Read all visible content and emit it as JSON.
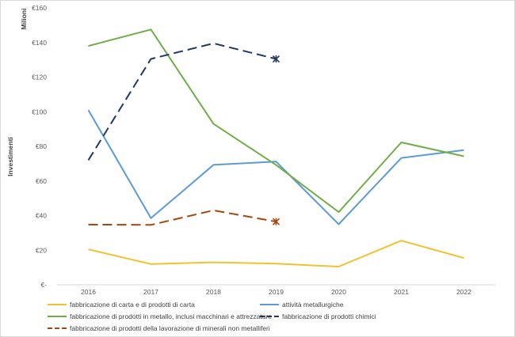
{
  "chart_data": {
    "type": "line",
    "x": [
      "2016",
      "2017",
      "2018",
      "2019",
      "2020",
      "2021",
      "2022"
    ],
    "ylabel": "Investimenti",
    "units_label": "Milioni",
    "ylim": [
      0,
      160
    ],
    "y_ticks": [
      "€-",
      "€20",
      "€40",
      "€60",
      "€80",
      "€100",
      "€120",
      "€140",
      "€160"
    ],
    "grid": false,
    "legend_position": "bottom",
    "series": [
      {
        "name": "fabbricazione di carta e di prodotti di carta",
        "color": "#f2c12e",
        "dashed": false,
        "values": [
          20.5,
          12,
          13,
          12.2,
          10.5,
          25.5,
          15.5
        ]
      },
      {
        "name": "attività metallurgiche",
        "color": "#5b9bd5",
        "dashed": false,
        "values": [
          101,
          38.5,
          69.3,
          71.2,
          35,
          73.3,
          77.8
        ]
      },
      {
        "name": "fabbricazione di prodotti in metallo, inclusi macchinari e attrezzature",
        "color": "#70ad47",
        "dashed": false,
        "values": [
          138,
          147.5,
          93,
          69.2,
          42,
          82.3,
          74.3
        ]
      },
      {
        "name": "fabbricazione di prodotti chimici",
        "color": "#1f3864",
        "dashed": true,
        "values": [
          72,
          130.5,
          139.5,
          130.5,
          null,
          null,
          null
        ],
        "end_marker": "x"
      },
      {
        "name": "fabbricazione di prodotti della lavorazione di minerali non metalliferi",
        "color": "#a5460e",
        "dashed": true,
        "values": [
          34.8,
          34.6,
          43,
          36.5,
          null,
          null,
          null
        ],
        "end_marker": "x"
      }
    ]
  }
}
